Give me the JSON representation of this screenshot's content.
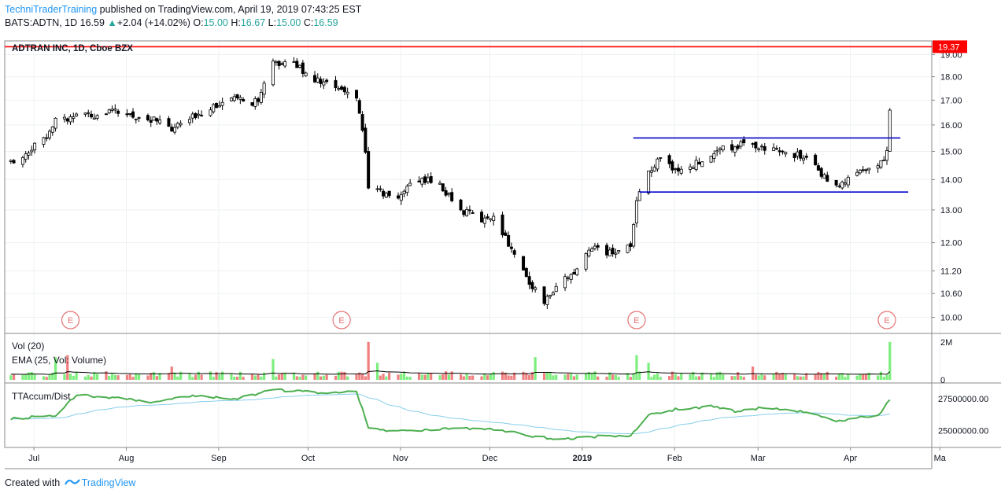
{
  "header": {
    "author": "TechniTraderTraining",
    "published_text": "published on TradingView.com, April 19, 2019 07:43:25 EST",
    "symbol_line": "BATS:ADTN, 1D",
    "last": "16.59",
    "change": "+2.04 (+14.02%)",
    "o_label": "O:",
    "o_val": "15.00",
    "h_label": "H:",
    "h_val": "16.67",
    "l_label": "L:",
    "l_val": "15.00",
    "c_label": "C:",
    "c_val": "16.59"
  },
  "footer": {
    "created_with": "Created with",
    "brand": "TradingView"
  },
  "colors": {
    "up": "#ffffff",
    "down": "#000000",
    "wick": "#000000",
    "resistance": "#ff0000",
    "channel": "#0000cc",
    "vol_up": "#7cee7c",
    "vol_down": "#f08080",
    "ema_vol": "#000000",
    "accum": "#4caf50",
    "accum_ma": "#87ceeb",
    "earnings": "#e57373",
    "grid": "#eef0f3",
    "axis": "#131722"
  },
  "chart_data": {
    "type": "candlestick",
    "title": "ADTRAN INC, 1D, Cboe BZX",
    "price_axis": {
      "min": 9.8,
      "max": 19.2,
      "scale": "log",
      "ticks": [
        "10.00",
        "10.60",
        "11.20",
        "12.00",
        "13.00",
        "14.00",
        "15.00",
        "16.00",
        "17.00",
        "18.00",
        "19.00"
      ]
    },
    "last_price_label": "19.37",
    "resistance_level": 19.37,
    "channel": {
      "upper": 15.5,
      "lower": 13.58,
      "from": "2019-01-25",
      "to": "2019-04-22"
    },
    "x_axis_labels": [
      "Jul",
      "Aug",
      "Sep",
      "Oct",
      "Nov",
      "Dec",
      "2019",
      "Feb",
      "Mar",
      "Apr",
      "Ma"
    ],
    "earnings_markers": {
      "label": "E",
      "dates": [
        "2018-07-18",
        "2018-10-17",
        "2019-01-24",
        "2019-04-18"
      ]
    },
    "close_path": [
      [
        "2018-06-28",
        14.6
      ],
      [
        "2018-07-05",
        15.1
      ],
      [
        "2018-07-10",
        15.6
      ],
      [
        "2018-07-13",
        16.3
      ],
      [
        "2018-07-17",
        16.2
      ],
      [
        "2018-07-20",
        16.5
      ],
      [
        "2018-07-26",
        16.4
      ],
      [
        "2018-08-02",
        16.5
      ],
      [
        "2018-08-10",
        16.3
      ],
      [
        "2018-08-15",
        16.2
      ],
      [
        "2018-08-21",
        15.8
      ],
      [
        "2018-08-28",
        16.3
      ],
      [
        "2018-09-04",
        16.8
      ],
      [
        "2018-09-11",
        17.0
      ],
      [
        "2018-09-19",
        16.9
      ],
      [
        "2018-09-24",
        18.6
      ],
      [
        "2018-10-01",
        18.6
      ],
      [
        "2018-10-04",
        18.3
      ],
      [
        "2018-10-08",
        17.9
      ],
      [
        "2018-10-12",
        17.7
      ],
      [
        "2018-10-16",
        17.4
      ],
      [
        "2018-10-22",
        17.2
      ],
      [
        "2018-10-25",
        15.0
      ],
      [
        "2018-10-26",
        13.8
      ],
      [
        "2018-10-31",
        13.5
      ],
      [
        "2018-11-05",
        13.4
      ],
      [
        "2018-11-09",
        13.9
      ],
      [
        "2018-11-15",
        14.0
      ],
      [
        "2018-11-20",
        13.7
      ],
      [
        "2018-11-26",
        13.0
      ],
      [
        "2018-12-03",
        12.7
      ],
      [
        "2018-12-07",
        12.8
      ],
      [
        "2018-12-12",
        12.0
      ],
      [
        "2018-12-18",
        11.0
      ],
      [
        "2018-12-21",
        10.7
      ],
      [
        "2018-12-24",
        10.4
      ],
      [
        "2018-12-28",
        10.8
      ],
      [
        "2019-01-04",
        11.2
      ],
      [
        "2019-01-09",
        11.9
      ],
      [
        "2019-01-15",
        11.7
      ],
      [
        "2019-01-22",
        11.9
      ],
      [
        "2019-01-24",
        13.2
      ],
      [
        "2019-01-28",
        14.3
      ],
      [
        "2019-02-01",
        14.7
      ],
      [
        "2019-02-07",
        14.3
      ],
      [
        "2019-02-12",
        14.5
      ],
      [
        "2019-02-19",
        15.0
      ],
      [
        "2019-02-26",
        15.2
      ],
      [
        "2019-03-04",
        15.3
      ],
      [
        "2019-03-08",
        15.0
      ],
      [
        "2019-03-14",
        15.0
      ],
      [
        "2019-03-21",
        14.8
      ],
      [
        "2019-03-27",
        14.2
      ],
      [
        "2019-04-02",
        13.8
      ],
      [
        "2019-04-08",
        14.2
      ],
      [
        "2019-04-12",
        14.3
      ],
      [
        "2019-04-16",
        14.6
      ],
      [
        "2019-04-18",
        15.0
      ]
    ],
    "last_bar": {
      "date": "2019-04-19",
      "open": 15.0,
      "high": 16.67,
      "low": 15.0,
      "close": 16.59
    },
    "volume": {
      "label": "Vol (20)",
      "ema_label": "EMA (25, Vol: Volume)",
      "ticks": [
        "2M",
        "0"
      ],
      "max": 2200000,
      "spikes": [
        [
          "2018-07-13",
          1200000
        ],
        [
          "2018-07-17",
          1300000
        ],
        [
          "2018-08-21",
          700000
        ],
        [
          "2018-09-24",
          1100000
        ],
        [
          "2018-10-26",
          2000000
        ],
        [
          "2018-10-29",
          900000
        ],
        [
          "2018-12-21",
          1200000
        ],
        [
          "2019-01-24",
          1300000
        ],
        [
          "2019-01-28",
          900000
        ],
        [
          "2019-03-04",
          700000
        ],
        [
          "2019-04-19",
          2000000
        ]
      ]
    },
    "tt_accum": {
      "label": "TTAccum/Dist",
      "ticks": [
        "27500000.00",
        "25000000.00"
      ],
      "min": 23900000,
      "max": 28500000,
      "series": [
        [
          "2018-06-28",
          25900000
        ],
        [
          "2018-07-13",
          26200000
        ],
        [
          "2018-07-20",
          27800000
        ],
        [
          "2018-08-02",
          27600000
        ],
        [
          "2018-08-15",
          27200000
        ],
        [
          "2018-08-28",
          27800000
        ],
        [
          "2018-09-11",
          27500000
        ],
        [
          "2018-09-24",
          28200000
        ],
        [
          "2018-10-08",
          28000000
        ],
        [
          "2018-10-22",
          28100000
        ],
        [
          "2018-10-26",
          25200000
        ],
        [
          "2018-11-05",
          24900000
        ],
        [
          "2018-11-20",
          25100000
        ],
        [
          "2018-12-03",
          25200000
        ],
        [
          "2018-12-12",
          24900000
        ],
        [
          "2018-12-21",
          24500000
        ],
        [
          "2018-12-28",
          24300000
        ],
        [
          "2019-01-09",
          24500000
        ],
        [
          "2019-01-22",
          24600000
        ],
        [
          "2019-01-28",
          26200000
        ],
        [
          "2019-02-07",
          26700000
        ],
        [
          "2019-02-19",
          26900000
        ],
        [
          "2019-02-26",
          26500000
        ],
        [
          "2019-03-08",
          26800000
        ],
        [
          "2019-03-21",
          26500000
        ],
        [
          "2019-04-02",
          25700000
        ],
        [
          "2019-04-16",
          26300000
        ],
        [
          "2019-04-19",
          27500000
        ]
      ]
    }
  }
}
